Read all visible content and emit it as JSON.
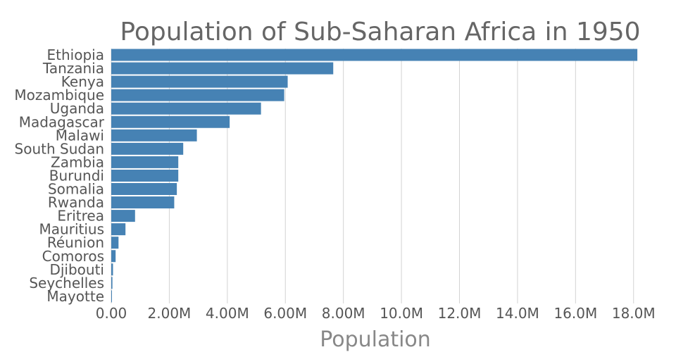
{
  "chart_data": {
    "type": "bar",
    "orientation": "horizontal",
    "title": "Population of Sub-Saharan Africa in 1950",
    "xlabel": "Population",
    "ylabel": "",
    "xlim": [
      0,
      18200000
    ],
    "grid": true,
    "bar_color": "#4682b4",
    "x_ticks": [
      {
        "value": 0,
        "label": "0.00"
      },
      {
        "value": 2000000,
        "label": "2.00M"
      },
      {
        "value": 4000000,
        "label": "4.00M"
      },
      {
        "value": 6000000,
        "label": "6.00M"
      },
      {
        "value": 8000000,
        "label": "8.00M"
      },
      {
        "value": 10000000,
        "label": "10.0M"
      },
      {
        "value": 12000000,
        "label": "12.0M"
      },
      {
        "value": 14000000,
        "label": "14.0M"
      },
      {
        "value": 16000000,
        "label": "16.0M"
      },
      {
        "value": 18000000,
        "label": "18.0M"
      }
    ],
    "categories": [
      "Ethiopia",
      "Tanzania",
      "Kenya",
      "Mozambique",
      "Uganda",
      "Madagascar",
      "Malawi",
      "South Sudan",
      "Zambia",
      "Burundi",
      "Somalia",
      "Rwanda",
      "Eritrea",
      "Mauritius",
      "Réunion",
      "Comoros",
      "Djibouti",
      "Seychelles",
      "Mayotte"
    ],
    "values": [
      18130000,
      7650000,
      6080000,
      5960000,
      5160000,
      4080000,
      2950000,
      2480000,
      2310000,
      2310000,
      2260000,
      2170000,
      820000,
      490000,
      250000,
      150000,
      60000,
      40000,
      20000
    ]
  }
}
